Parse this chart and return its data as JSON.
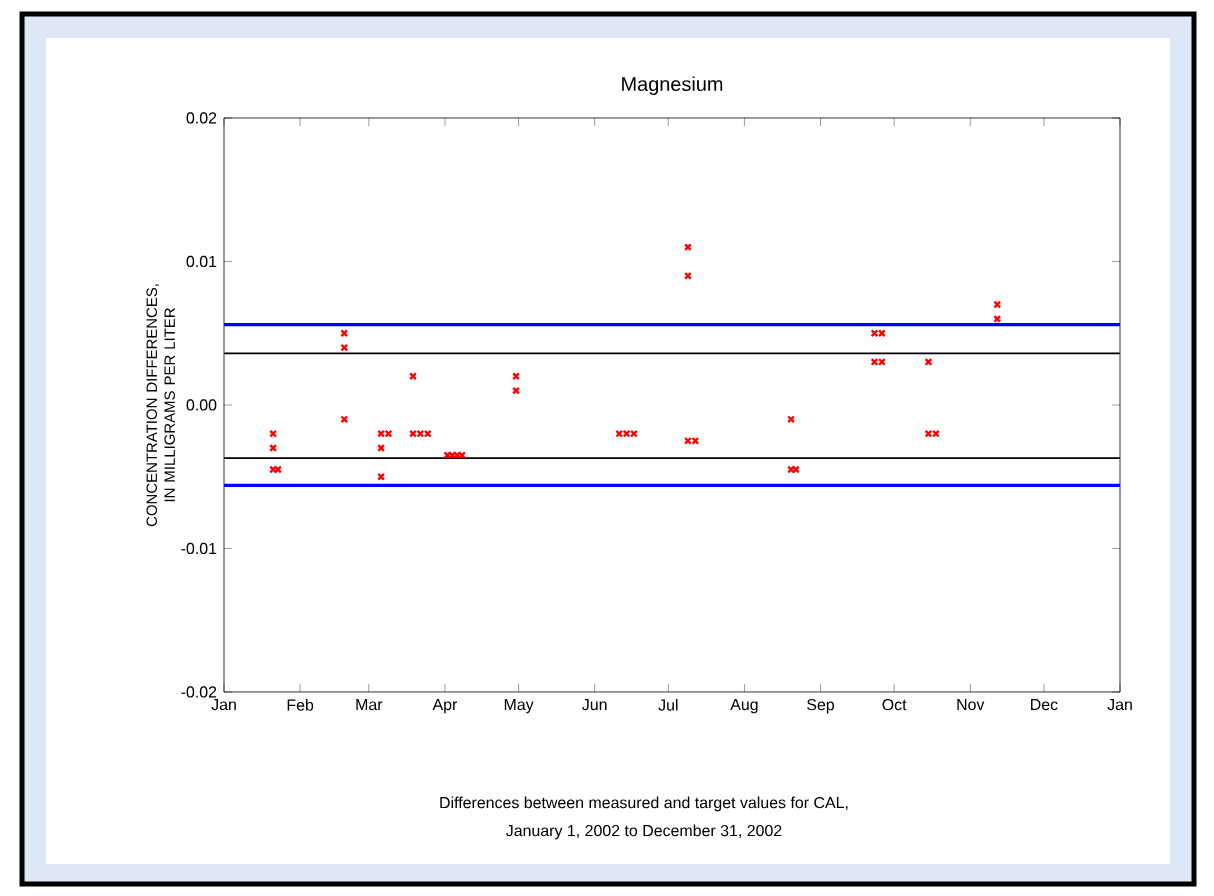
{
  "chart_data": {
    "type": "scatter",
    "title": "Magnesium",
    "ylabel": "CONCENTRATION DIFFERENCES, IN MILLIGRAMS PER LITER",
    "annotations": [
      "Differences between measured and target values for CAL,",
      "January 1, 2002 to December 31, 2002"
    ],
    "series": [
      {
        "color": "#ff0000",
        "marker": "cross",
        "x": [
          "2002-01-21",
          "2002-01-21",
          "2002-01-21",
          "2002-01-23",
          "2002-02-19",
          "2002-02-19",
          "2002-02-19",
          "2002-03-06",
          "2002-03-06",
          "2002-03-06",
          "2002-03-09",
          "2002-03-19",
          "2002-03-19",
          "2002-03-22",
          "2002-03-25",
          "2002-04-02",
          "2002-04-04",
          "2002-04-06",
          "2002-04-08",
          "2002-04-30",
          "2002-04-30",
          "2002-06-11",
          "2002-06-14",
          "2002-06-17",
          "2002-07-09",
          "2002-07-09",
          "2002-07-09",
          "2002-07-12",
          "2002-08-20",
          "2002-08-20",
          "2002-08-22",
          "2002-09-23",
          "2002-09-23",
          "2002-09-26",
          "2002-09-26",
          "2002-10-15",
          "2002-10-15",
          "2002-10-18",
          "2002-11-12",
          "2002-11-12"
        ],
        "values": [
          -0.002,
          -0.003,
          -0.0045,
          -0.0045,
          0.005,
          0.004,
          -0.001,
          -0.003,
          -0.005,
          -0.002,
          -0.002,
          0.002,
          -0.002,
          -0.002,
          -0.002,
          -0.0035,
          -0.0035,
          -0.0035,
          -0.0035,
          0.002,
          0.001,
          -0.002,
          -0.002,
          -0.002,
          0.011,
          0.009,
          -0.0025,
          -0.0025,
          -0.001,
          -0.0045,
          -0.0045,
          0.005,
          0.003,
          0.005,
          0.003,
          0.003,
          -0.002,
          -0.002,
          0.007,
          0.006
        ]
      }
    ],
    "xlim": [
      "2002-01-01",
      "2003-01-01"
    ],
    "xticks": [
      {
        "value": "2002-01-01",
        "label": "Jan"
      },
      {
        "value": "2002-02-01",
        "label": "Feb"
      },
      {
        "value": "2002-03-01",
        "label": "Mar"
      },
      {
        "value": "2002-04-01",
        "label": "Apr"
      },
      {
        "value": "2002-05-01",
        "label": "May"
      },
      {
        "value": "2002-06-01",
        "label": "Jun"
      },
      {
        "value": "2002-07-01",
        "label": "Jul"
      },
      {
        "value": "2002-08-01",
        "label": "Aug"
      },
      {
        "value": "2002-09-01",
        "label": "Sep"
      },
      {
        "value": "2002-10-01",
        "label": "Oct"
      },
      {
        "value": "2002-11-01",
        "label": "Nov"
      },
      {
        "value": "2002-12-01",
        "label": "Dec"
      },
      {
        "value": "2003-01-01",
        "label": "Jan"
      }
    ],
    "ylim": [
      -0.02,
      0.02
    ],
    "yticks": [
      {
        "value": -0.02,
        "label": "-0.02"
      },
      {
        "value": -0.01,
        "label": "-0.01"
      },
      {
        "value": 0,
        "label": "0.00"
      },
      {
        "value": 0.01,
        "label": "0.01"
      },
      {
        "value": 0.02,
        "label": "0.02"
      }
    ],
    "ref_lines": [
      {
        "axis": "y",
        "value": 0.0056,
        "color": "#0000ff"
      },
      {
        "axis": "y",
        "value": -0.0056,
        "color": "#0000ff"
      },
      {
        "axis": "y",
        "value": 0.0036,
        "color": "#000000"
      },
      {
        "axis": "y",
        "value": -0.0037,
        "color": "#000000"
      }
    ],
    "grid": false
  }
}
